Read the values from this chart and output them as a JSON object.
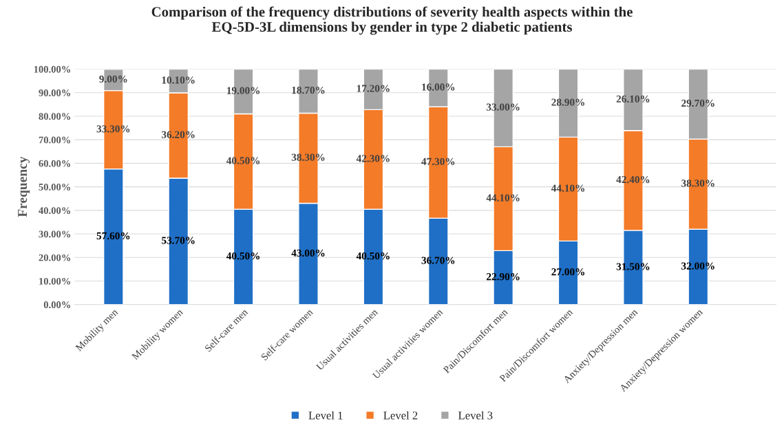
{
  "chart_data": {
    "type": "bar",
    "stacked": true,
    "title": "Comparison of the frequency distributions of severity health aspects within the\nEQ-5D-3L dimensions by gender in type 2 diabetic patients",
    "ylabel": "Frequency",
    "categories": [
      "Mobility men",
      "Mobility women",
      "Self-care men",
      "Self-care women",
      "Usual activities men",
      "Usual activities women",
      "Pain/Discomfort men",
      "Pain/Discomfort women",
      "Anxiety/Depression men",
      "Anxiety/Depression women"
    ],
    "series": [
      {
        "name": "Level 1",
        "color": "#1f6fc6",
        "values": [
          57.6,
          53.7,
          40.5,
          43.0,
          40.5,
          36.7,
          22.9,
          27.0,
          31.5,
          32.0
        ],
        "value_labels": [
          "57.60%",
          "53.70%",
          "40.50%",
          "43.00%",
          "40.50%",
          "36.70%",
          "22.90%",
          "27.00%",
          "31.50%",
          "32.00%"
        ]
      },
      {
        "name": "Level 2",
        "color": "#f47b28",
        "values": [
          33.3,
          36.2,
          40.5,
          38.3,
          42.3,
          47.3,
          44.1,
          44.1,
          42.4,
          38.3
        ],
        "value_labels": [
          "33.30%",
          "36.20%",
          "40.50%",
          "38.30%",
          "42.30%",
          "47.30%",
          "44.10%",
          "44.10%",
          "42.40%",
          "38.30%"
        ]
      },
      {
        "name": "Level 3",
        "color": "#a5a5a5",
        "values": [
          9.0,
          10.1,
          19.0,
          18.7,
          17.2,
          16.0,
          33.0,
          28.9,
          26.1,
          29.7
        ],
        "value_labels": [
          "9.00%",
          "10.10%",
          "19.00%",
          "18.70%",
          "17.20%",
          "16.00%",
          "33.00%",
          "28.90%",
          "26.10%",
          "29.70%"
        ]
      }
    ],
    "ylim": [
      0,
      100
    ],
    "yticks": [
      {
        "value": 0,
        "label": "0.00%"
      },
      {
        "value": 10,
        "label": "10.00%"
      },
      {
        "value": 20,
        "label": "20.00%"
      },
      {
        "value": 30,
        "label": "30.00%"
      },
      {
        "value": 40,
        "label": "40.00%"
      },
      {
        "value": 50,
        "label": "50.00%"
      },
      {
        "value": 60,
        "label": "60.00%"
      },
      {
        "value": 70,
        "label": "70.00%"
      },
      {
        "value": 80,
        "label": "80.00%"
      },
      {
        "value": 90,
        "label": "90.00%"
      },
      {
        "value": 100,
        "label": "100.00%"
      }
    ],
    "grid": "y",
    "legend": "bottom"
  }
}
